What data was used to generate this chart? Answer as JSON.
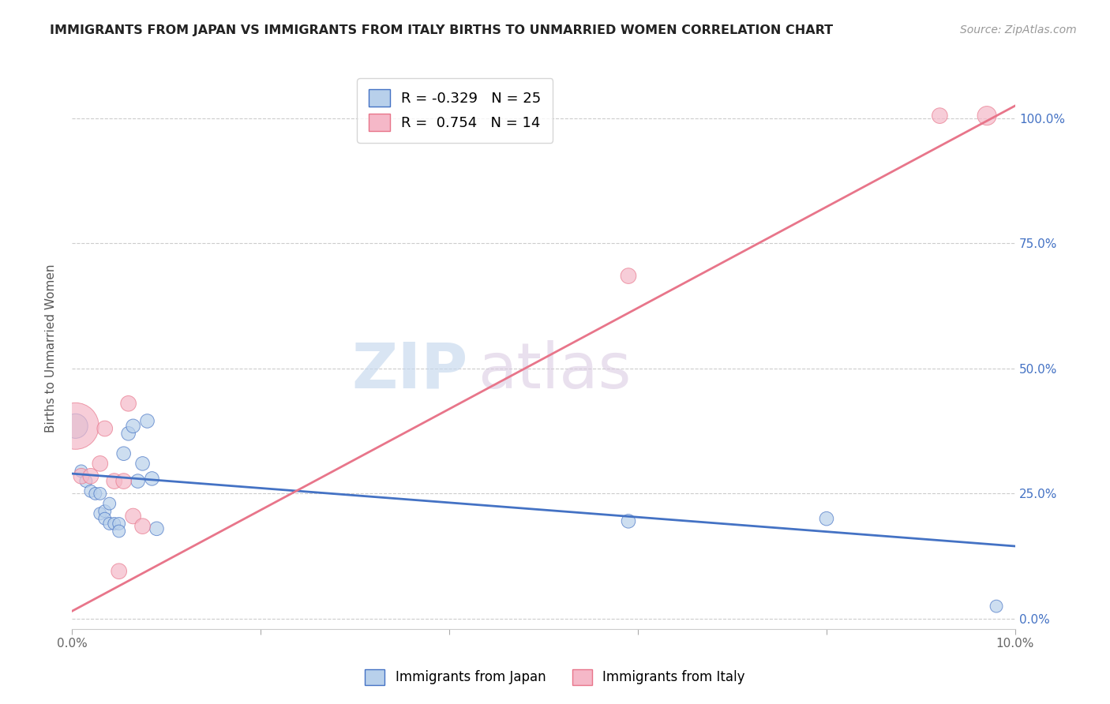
{
  "title": "IMMIGRANTS FROM JAPAN VS IMMIGRANTS FROM ITALY BIRTHS TO UNMARRIED WOMEN CORRELATION CHART",
  "source": "Source: ZipAtlas.com",
  "ylabel": "Births to Unmarried Women",
  "watermark": "ZIPatlas",
  "legend_japan": "Immigrants from Japan",
  "legend_italy": "Immigrants from Italy",
  "japan_R": -0.329,
  "japan_N": 25,
  "italy_R": 0.754,
  "italy_N": 14,
  "japan_color": "#b8d0eb",
  "italy_color": "#f5b8c8",
  "japan_line_color": "#4472c4",
  "italy_line_color": "#e8758a",
  "right_axis_color": "#4472c4",
  "xlim": [
    0.0,
    0.1
  ],
  "ylim": [
    -0.02,
    1.1
  ],
  "yticks_right": [
    0.0,
    0.25,
    0.5,
    0.75,
    1.0
  ],
  "ytick_labels_right": [
    "0.0%",
    "25.0%",
    "50.0%",
    "75.0%",
    "100.0%"
  ],
  "xticks": [
    0.0,
    0.02,
    0.04,
    0.06,
    0.08,
    0.1
  ],
  "xtick_labels_show": [
    "0.0%",
    "",
    "",
    "",
    "",
    "10.0%"
  ],
  "japan_x": [
    0.0004,
    0.001,
    0.0015,
    0.002,
    0.0025,
    0.003,
    0.003,
    0.0035,
    0.0035,
    0.004,
    0.004,
    0.0045,
    0.005,
    0.005,
    0.0055,
    0.006,
    0.0065,
    0.007,
    0.0075,
    0.008,
    0.0085,
    0.009,
    0.059,
    0.08,
    0.098
  ],
  "japan_y": [
    0.385,
    0.295,
    0.275,
    0.255,
    0.25,
    0.25,
    0.21,
    0.215,
    0.2,
    0.19,
    0.23,
    0.19,
    0.19,
    0.175,
    0.33,
    0.37,
    0.385,
    0.275,
    0.31,
    0.395,
    0.28,
    0.18,
    0.195,
    0.2,
    0.025
  ],
  "japan_sizes": [
    500,
    130,
    130,
    130,
    130,
    130,
    130,
    130,
    130,
    130,
    130,
    130,
    130,
    130,
    160,
    160,
    160,
    160,
    160,
    160,
    160,
    160,
    160,
    160,
    130
  ],
  "italy_x": [
    0.0004,
    0.001,
    0.002,
    0.003,
    0.0035,
    0.0045,
    0.005,
    0.0055,
    0.006,
    0.0065,
    0.0075,
    0.059,
    0.092,
    0.097
  ],
  "italy_y": [
    0.385,
    0.285,
    0.285,
    0.31,
    0.38,
    0.275,
    0.095,
    0.275,
    0.43,
    0.205,
    0.185,
    0.685,
    1.005,
    1.005
  ],
  "italy_sizes": [
    1800,
    200,
    200,
    200,
    200,
    200,
    200,
    200,
    200,
    200,
    200,
    200,
    200,
    300
  ],
  "japan_line_x": [
    0.0,
    0.1
  ],
  "japan_line_y": [
    0.29,
    0.145
  ],
  "italy_line_x": [
    0.0,
    0.1
  ],
  "italy_line_y": [
    0.015,
    1.025
  ]
}
